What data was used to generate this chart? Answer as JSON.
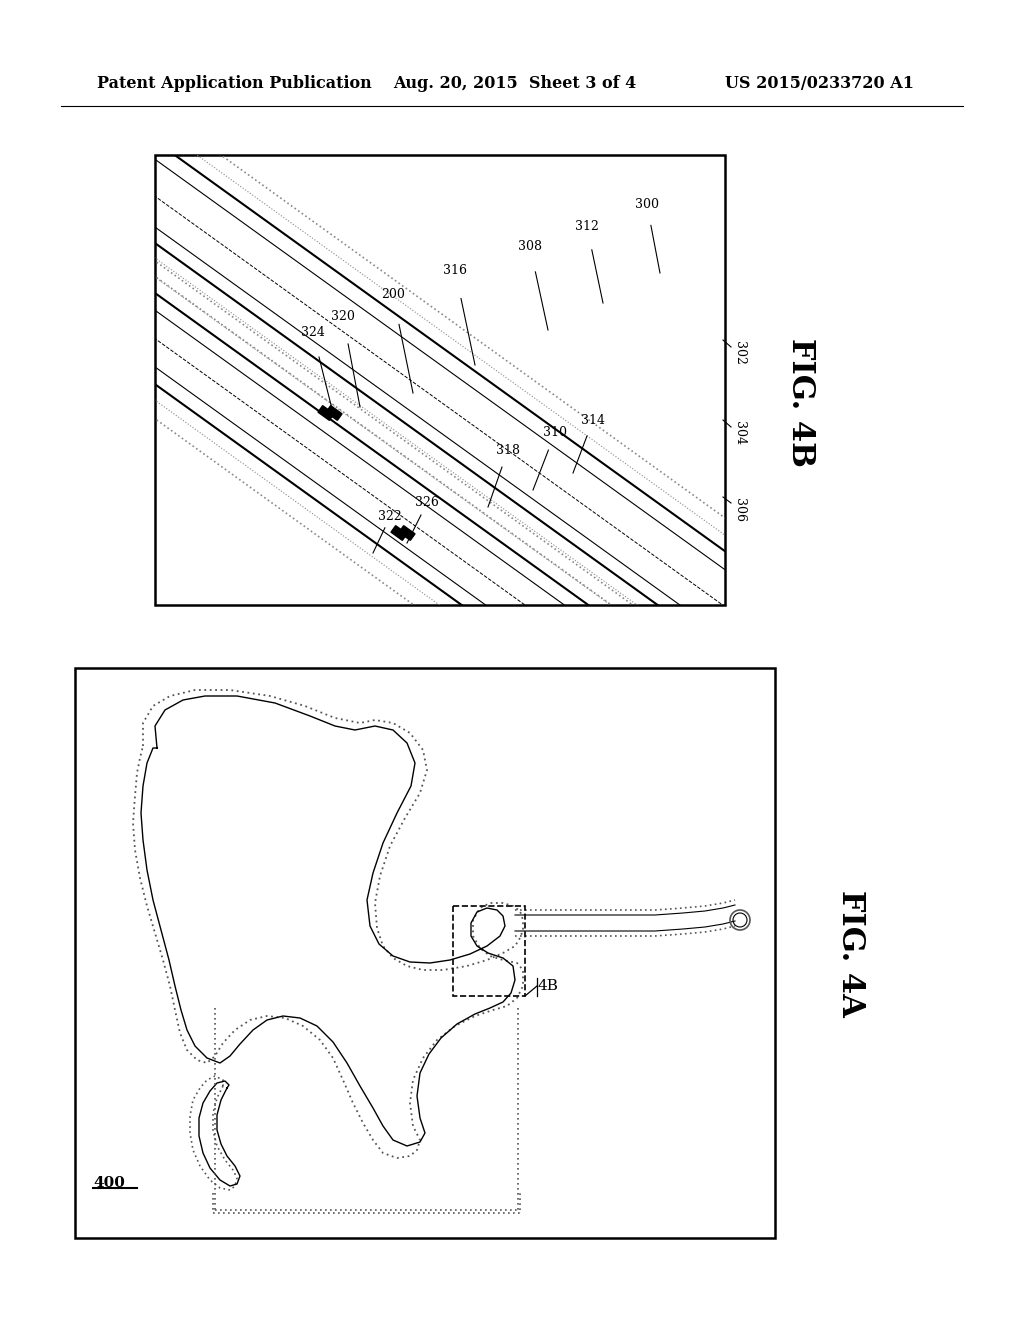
{
  "background_color": "#ffffff",
  "header_text": "Patent Application Publication",
  "header_date": "Aug. 20, 2015  Sheet 3 of 4",
  "header_patent": "US 2015/0233720 A1",
  "fig4b_label": "FIG. 4B",
  "fig4a_label": "FIG. 4A",
  "label_400": "400"
}
